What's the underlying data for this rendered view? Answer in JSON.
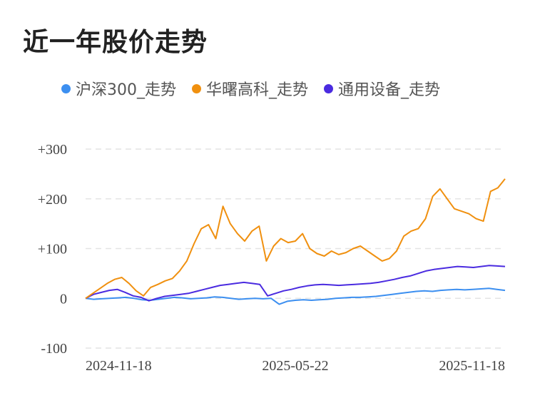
{
  "title": "近一年股价走势",
  "chart_data": {
    "type": "line",
    "ylim": [
      -100,
      300
    ],
    "y_ticks": [
      "+300",
      "+200",
      "+100",
      "0",
      "-100"
    ],
    "y_tick_values": [
      300,
      200,
      100,
      0,
      -100
    ],
    "x_ticks": [
      "2024-11-18",
      "2025-05-22",
      "2025-11-18"
    ],
    "grid": true,
    "legend_position": "top",
    "series": [
      {
        "name": "沪深300_走势",
        "color": "#3c8ff0",
        "values": [
          0,
          -2,
          -1,
          0,
          1,
          2,
          0,
          -3,
          -4,
          -2,
          0,
          2,
          1,
          -1,
          0,
          1,
          3,
          2,
          0,
          -2,
          -1,
          0,
          -1,
          0,
          -12,
          -6,
          -4,
          -3,
          -4,
          -3,
          -2,
          0,
          1,
          2,
          2,
          3,
          4,
          6,
          8,
          10,
          12,
          14,
          15,
          14,
          16,
          17,
          18,
          17,
          18,
          19,
          20,
          18,
          16
        ]
      },
      {
        "name": "华曙高科_走势",
        "color": "#f0900f",
        "values": [
          0,
          10,
          20,
          30,
          38,
          42,
          30,
          15,
          5,
          22,
          28,
          35,
          40,
          55,
          75,
          110,
          140,
          148,
          120,
          185,
          150,
          130,
          115,
          135,
          145,
          75,
          105,
          120,
          112,
          115,
          130,
          100,
          90,
          85,
          95,
          88,
          92,
          100,
          105,
          95,
          85,
          75,
          80,
          95,
          125,
          135,
          140,
          160,
          205,
          220,
          200,
          180,
          175,
          170,
          160,
          155,
          215,
          222,
          240
        ]
      },
      {
        "name": "通用设备_走势",
        "color": "#4a2be0",
        "values": [
          0,
          8,
          12,
          16,
          18,
          12,
          5,
          2,
          -5,
          0,
          4,
          6,
          8,
          10,
          14,
          18,
          22,
          26,
          28,
          30,
          32,
          30,
          28,
          5,
          10,
          15,
          18,
          22,
          25,
          27,
          28,
          27,
          26,
          27,
          28,
          29,
          30,
          32,
          35,
          38,
          42,
          45,
          50,
          55,
          58,
          60,
          62,
          64,
          63,
          62,
          64,
          66,
          65,
          64
        ]
      }
    ]
  }
}
